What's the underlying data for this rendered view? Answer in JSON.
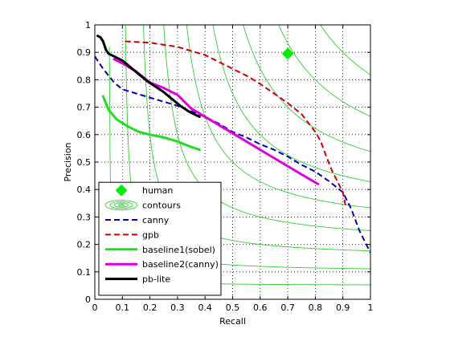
{
  "chart_data": {
    "type": "line",
    "xlabel": "Recall",
    "ylabel": "Precision",
    "xlim": [
      0,
      1
    ],
    "ylim": [
      0,
      1
    ],
    "grid": true,
    "grid_style": "dotted",
    "xticks": [
      "0",
      "0.1",
      "0.2",
      "0.3",
      "0.4",
      "0.5",
      "0.6",
      "0.7",
      "0.8",
      "0.9",
      "1"
    ],
    "yticks": [
      "0",
      "0.1",
      "0.2",
      "0.3",
      "0.4",
      "0.5",
      "0.6",
      "0.7",
      "0.8",
      "0.9",
      "1"
    ],
    "legend_position": "bottom-left",
    "iso_f_contours": {
      "color": "#33cc33",
      "levels": [
        0.1,
        0.2,
        0.3,
        0.4,
        0.5,
        0.6,
        0.7,
        0.8,
        0.9
      ]
    },
    "series": [
      {
        "name": "human",
        "style": "marker",
        "color": "#00ee00",
        "x": [
          0.7
        ],
        "y": [
          0.895
        ]
      },
      {
        "name": "contours",
        "style": "contour-icon",
        "color": "#33cc33",
        "x": [],
        "y": []
      },
      {
        "name": "canny",
        "style": "dashed",
        "color": "#0000bb",
        "x": [
          0.0,
          0.03,
          0.07,
          0.1,
          0.15,
          0.2,
          0.25,
          0.3,
          0.35,
          0.4,
          0.45,
          0.5,
          0.55,
          0.6,
          0.65,
          0.7,
          0.75,
          0.8,
          0.85,
          0.9,
          0.93,
          0.96,
          1.0
        ],
        "y": [
          0.885,
          0.84,
          0.79,
          0.765,
          0.75,
          0.735,
          0.72,
          0.705,
          0.685,
          0.665,
          0.64,
          0.61,
          0.59,
          0.565,
          0.545,
          0.52,
          0.49,
          0.465,
          0.43,
          0.39,
          0.33,
          0.25,
          0.17
        ]
      },
      {
        "name": "gpb",
        "style": "dashed",
        "color": "#cc0000",
        "x": [
          0.11,
          0.2,
          0.3,
          0.4,
          0.5,
          0.55,
          0.6,
          0.65,
          0.7,
          0.75,
          0.8,
          0.82,
          0.84,
          0.86,
          0.88,
          0.9,
          0.91
        ],
        "y": [
          0.94,
          0.935,
          0.92,
          0.89,
          0.84,
          0.815,
          0.785,
          0.75,
          0.715,
          0.675,
          0.61,
          0.575,
          0.52,
          0.47,
          0.43,
          0.39,
          0.34
        ]
      },
      {
        "name": "baseline1(sobel)",
        "style": "solid",
        "color": "#22dd22",
        "x": [
          0.03,
          0.05,
          0.08,
          0.12,
          0.16,
          0.2,
          0.25,
          0.3,
          0.35,
          0.38
        ],
        "y": [
          0.74,
          0.69,
          0.655,
          0.63,
          0.61,
          0.6,
          0.59,
          0.575,
          0.555,
          0.545
        ]
      },
      {
        "name": "baseline2(canny)",
        "style": "solid",
        "color": "#dd00dd",
        "x": [
          0.07,
          0.1,
          0.15,
          0.2,
          0.25,
          0.3,
          0.35,
          0.4,
          0.45,
          0.5,
          0.55,
          0.6,
          0.65,
          0.7,
          0.75,
          0.81
        ],
        "y": [
          0.875,
          0.86,
          0.83,
          0.79,
          0.77,
          0.745,
          0.695,
          0.665,
          0.635,
          0.605,
          0.575,
          0.545,
          0.515,
          0.485,
          0.455,
          0.42
        ]
      },
      {
        "name": "pb-lite",
        "style": "solid",
        "color": "#000000",
        "x": [
          0.01,
          0.02,
          0.03,
          0.04,
          0.05,
          0.07,
          0.1,
          0.13,
          0.16,
          0.19,
          0.22,
          0.25,
          0.28,
          0.31,
          0.34,
          0.37,
          0.38
        ],
        "y": [
          0.96,
          0.955,
          0.94,
          0.91,
          0.895,
          0.885,
          0.87,
          0.845,
          0.82,
          0.795,
          0.775,
          0.755,
          0.73,
          0.705,
          0.685,
          0.67,
          0.665
        ]
      }
    ]
  }
}
